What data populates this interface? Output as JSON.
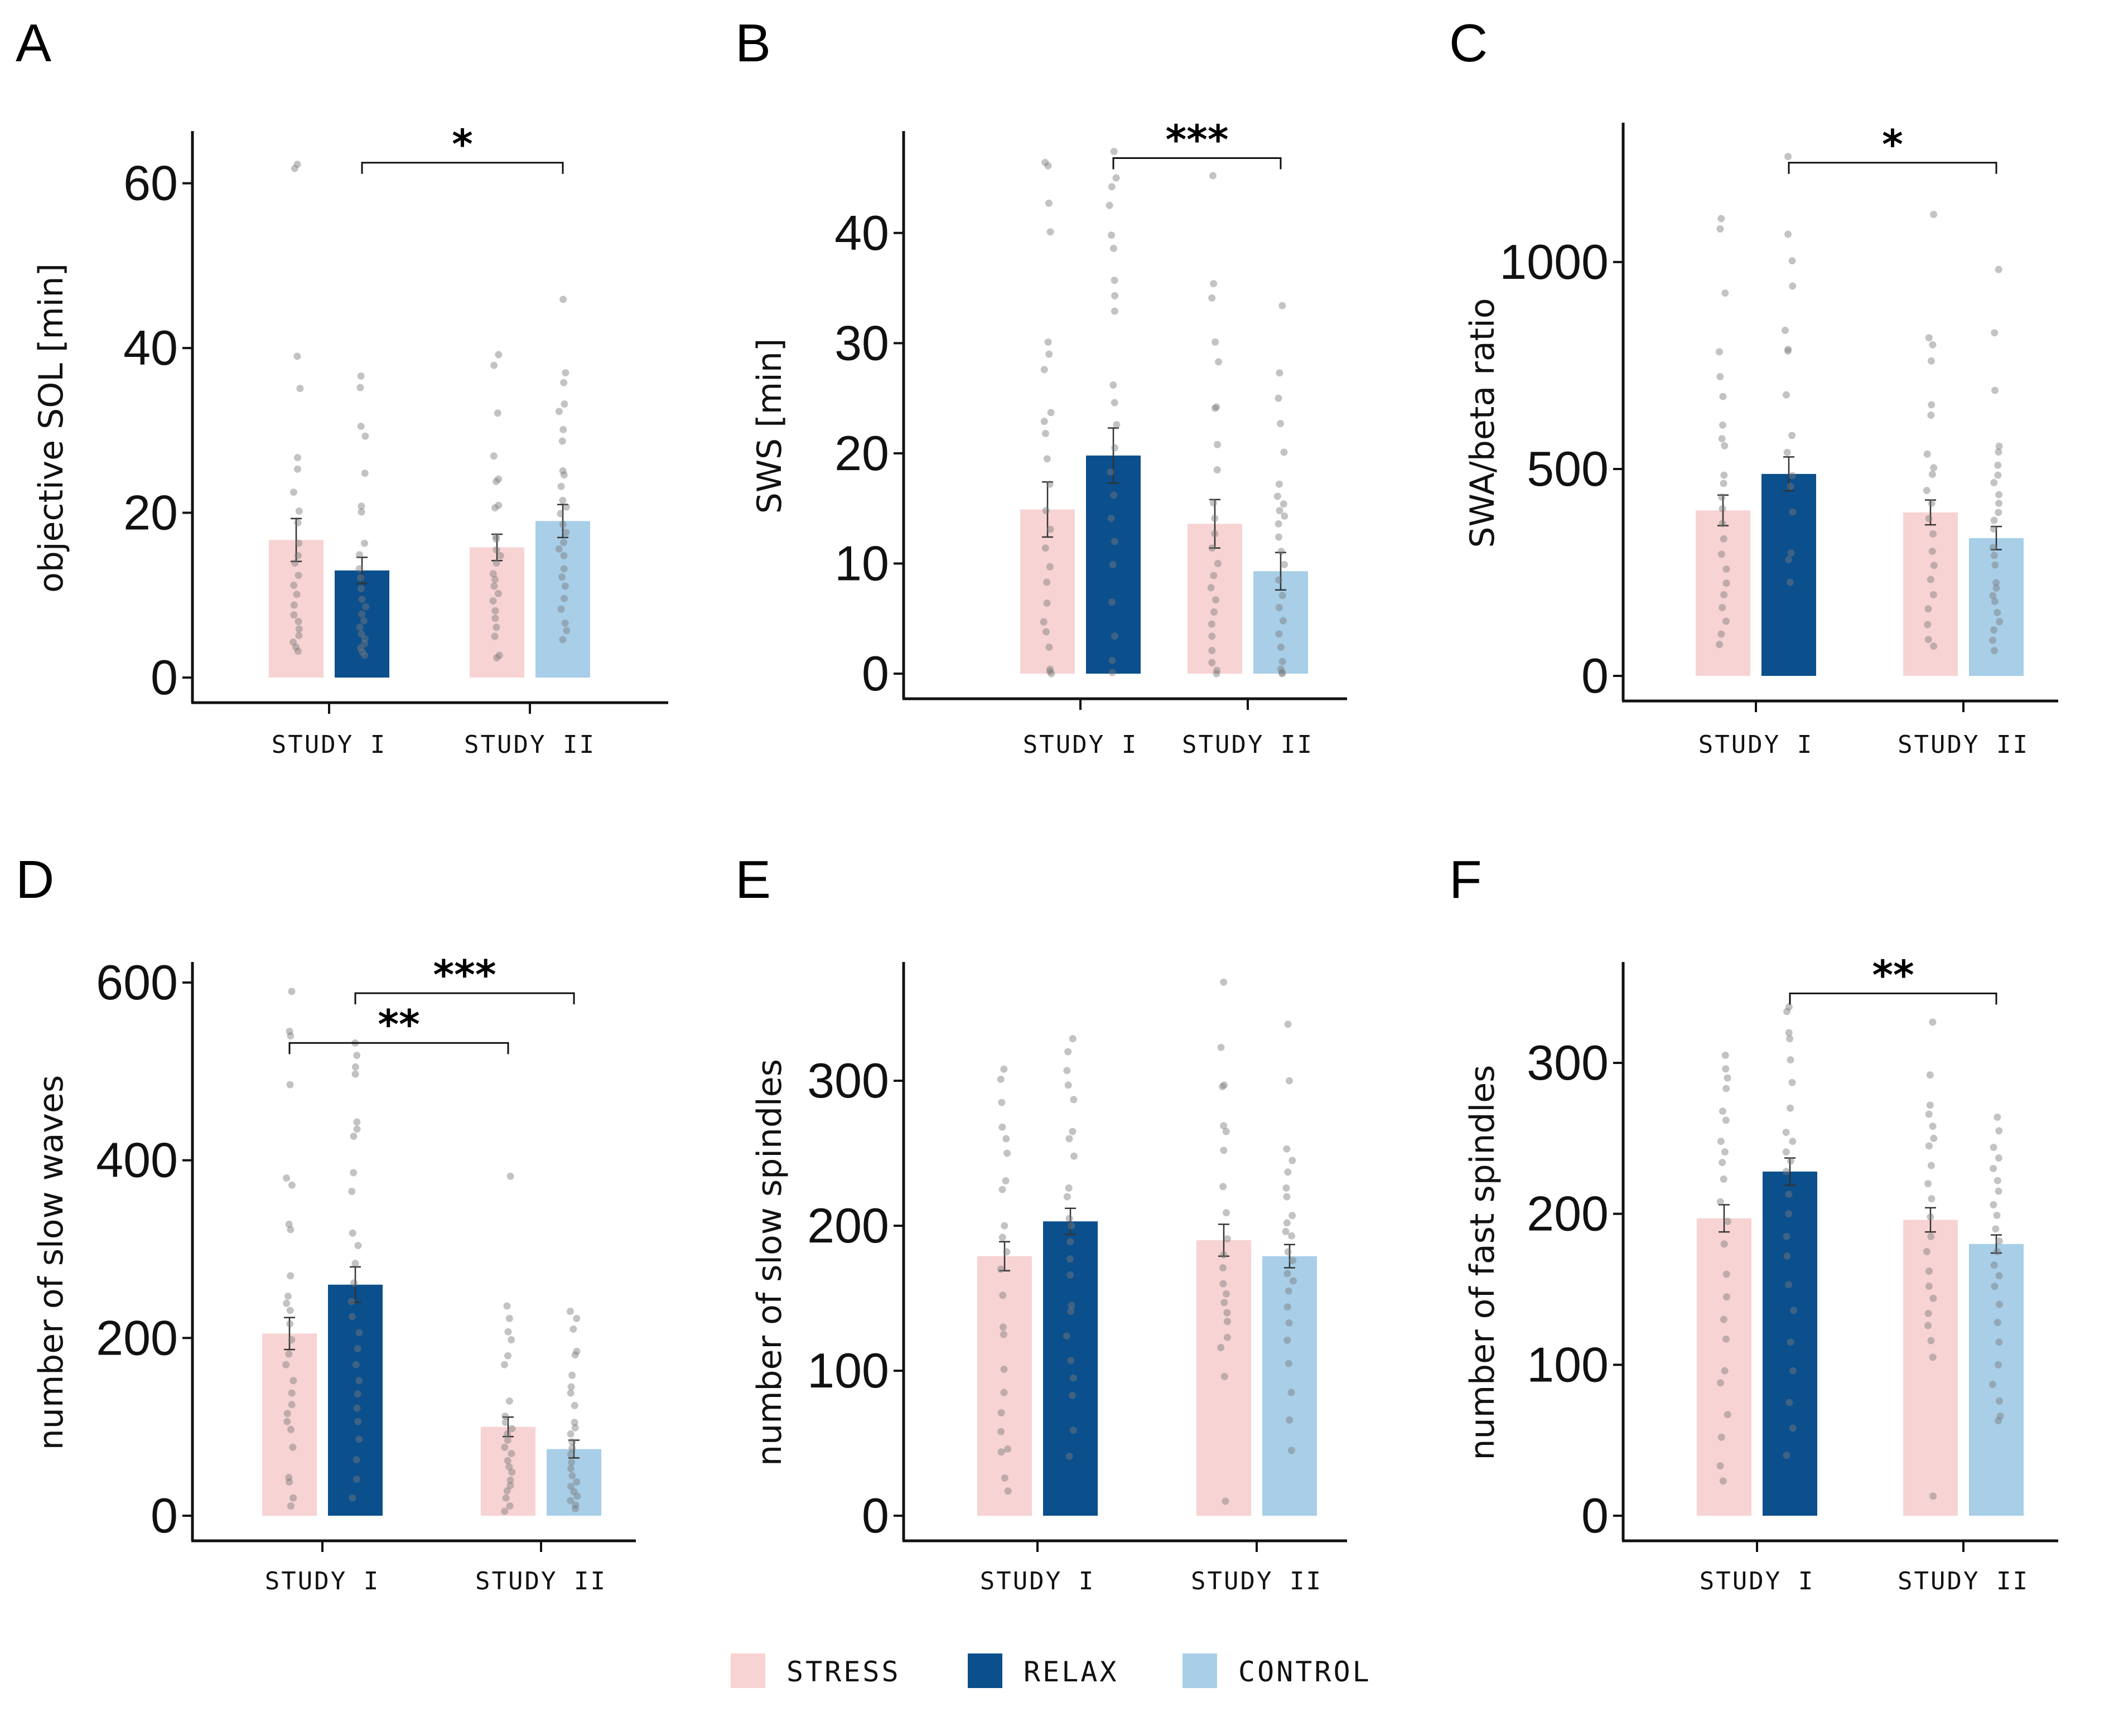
{
  "colors": {
    "stress": "#f7d3d3",
    "relax": "#0b4f8c",
    "control": "#a8cee8",
    "points": "#7a7a7a",
    "axis": "#111111"
  },
  "legend": [
    {
      "key": "stress",
      "label": "STRESS"
    },
    {
      "key": "relax",
      "label": "RELAX"
    },
    {
      "key": "control",
      "label": "CONTROL"
    }
  ],
  "chart_data": [
    {
      "panel": "A",
      "type": "bar",
      "ylabel": "objective SOL [min]",
      "ylim": [
        0,
        66
      ],
      "yticks": [
        0,
        20,
        40,
        60
      ],
      "categories": [
        "STUDY I",
        "STUDY II"
      ],
      "bars": [
        {
          "category": "STUDY I",
          "group": "stress",
          "value": 16.7,
          "se": 2.6,
          "points": [
            62.3,
            61.8,
            39,
            35.1,
            26.7,
            25.3,
            22.5,
            20.2,
            18.8,
            16.3,
            14.8,
            13.9,
            12.4,
            11.2,
            10.1,
            8.8,
            7.6,
            6.8,
            5.9,
            5.1,
            4.3,
            3.7,
            3.2
          ]
        },
        {
          "category": "STUDY I",
          "group": "relax",
          "value": 13.0,
          "se": 1.6,
          "points": [
            36.6,
            35.2,
            30.5,
            29.3,
            24.8,
            20.8,
            20.1,
            16.3,
            14.9,
            13.2,
            12.1,
            10.8,
            9.5,
            8.6,
            7.7,
            6.9,
            6.1,
            5.3,
            4.7,
            4.1,
            3.6,
            3.1,
            2.7
          ]
        },
        {
          "category": "STUDY II",
          "group": "stress",
          "value": 15.8,
          "se": 1.6,
          "points": [
            39.2,
            37.9,
            32.1,
            26.9,
            24.1,
            23.8,
            20.9,
            20.6,
            17.1,
            16.8,
            15.5,
            14.8,
            13.9,
            12.6,
            11.9,
            11.1,
            10.2,
            9.3,
            8.1,
            7.2,
            6.1,
            5.0,
            2.7,
            2.4
          ]
        },
        {
          "category": "STUDY II",
          "group": "control",
          "value": 19.0,
          "se": 2.0,
          "points": [
            45.9,
            37,
            35.8,
            33.2,
            32.3,
            30.1,
            28.7,
            25.1,
            24.6,
            23.2,
            21.5,
            20.7,
            19.9,
            18.6,
            17.6,
            16.4,
            15.6,
            14.8,
            13.2,
            12.2,
            11.1,
            9.6,
            8.3,
            6.6,
            5.7,
            4.6
          ]
        }
      ],
      "significance": [
        {
          "from": 1,
          "to": 3,
          "y": 62.5,
          "label": "*"
        }
      ]
    },
    {
      "panel": "B",
      "type": "bar",
      "ylabel": "SWS [min]",
      "ylim": [
        0,
        49
      ],
      "yticks": [
        0,
        10,
        20,
        30,
        40
      ],
      "categories": [
        "STUDY I",
        "STUDY II"
      ],
      "bars": [
        {
          "category": "STUDY I",
          "group": "stress",
          "value": 14.9,
          "se": 2.5,
          "points": [
            46.4,
            46.1,
            42.7,
            40.1,
            30.1,
            29.0,
            27.6,
            23.7,
            22.9,
            21.8,
            19.5,
            17.2,
            14.8,
            13.1,
            11.4,
            9.7,
            8.3,
            6.4,
            4.7,
            3.8,
            2.4,
            0.4,
            0.2,
            0.0
          ]
        },
        {
          "category": "STUDY I",
          "group": "relax",
          "value": 19.8,
          "se": 2.5,
          "points": [
            47.4,
            45.0,
            44.2,
            42.5,
            39.8,
            38.6,
            35.7,
            34.3,
            32.9,
            26.2,
            24.6,
            22.6,
            20.5,
            18.3,
            16.2,
            14.1,
            12.0,
            9.9,
            6.5,
            3.4,
            1.2,
            0.1
          ]
        },
        {
          "category": "STUDY II",
          "group": "stress",
          "value": 13.6,
          "se": 2.2,
          "points": [
            45.2,
            35.4,
            34.1,
            30.1,
            28.3,
            24.2,
            24.1,
            20.8,
            18.5,
            15.5,
            14.1,
            12.7,
            11.4,
            10.0,
            8.9,
            7.8,
            6.7,
            5.6,
            4.5,
            3.4,
            2.1,
            1.0,
            0.3,
            0.0
          ]
        },
        {
          "category": "STUDY II",
          "group": "control",
          "value": 9.3,
          "se": 1.7,
          "points": [
            33.4,
            27.3,
            25.0,
            22.7,
            20.1,
            17.2,
            16.1,
            15.4,
            14.8,
            14.3,
            13.6,
            12.4,
            11.1,
            9.9,
            8.5,
            7.1,
            6.0,
            4.8,
            3.6,
            2.4,
            1.1,
            0.4,
            0.1,
            0.0
          ]
        }
      ],
      "significance": [
        {
          "from": 1,
          "to": 3,
          "y": 46.8,
          "label": "***"
        }
      ]
    },
    {
      "panel": "C",
      "type": "bar",
      "ylabel": "SWA/beta ratio",
      "ylim": [
        0,
        1330
      ],
      "yticks": [
        0,
        500,
        1000
      ],
      "categories": [
        "STUDY I",
        "STUDY II"
      ],
      "bars": [
        {
          "category": "STUDY I",
          "group": "stress",
          "value": 400,
          "se": 37,
          "points": [
            1105,
            1080,
            925,
            783,
            723,
            675,
            606,
            573,
            556,
            485,
            465,
            432,
            404,
            368,
            331,
            294,
            258,
            224,
            196,
            165,
            132,
            101,
            76
          ]
        },
        {
          "category": "STUDY I",
          "group": "relax",
          "value": 488,
          "se": 41,
          "points": [
            1255,
            1067,
            1003,
            942,
            835,
            789,
            785,
            679,
            581,
            540,
            484,
            458,
            396,
            297,
            281,
            226
          ]
        },
        {
          "category": "STUDY II",
          "group": "stress",
          "value": 395,
          "se": 30,
          "points": [
            1115,
            817,
            800,
            761,
            655,
            630,
            536,
            503,
            487,
            448,
            417,
            380,
            343,
            301,
            267,
            233,
            196,
            162,
            124,
            88,
            72
          ]
        },
        {
          "category": "STUDY II",
          "group": "control",
          "value": 333,
          "se": 28,
          "points": [
            982,
            829,
            690,
            555,
            541,
            509,
            485,
            467,
            438,
            417,
            395,
            376,
            355,
            310,
            291,
            268,
            225,
            212,
            194,
            180,
            153,
            131,
            111,
            86,
            61
          ]
        }
      ],
      "significance": [
        {
          "from": 1,
          "to": 3,
          "y": 1240,
          "label": "*"
        }
      ]
    },
    {
      "panel": "D",
      "type": "bar",
      "ylabel": "number of slow waves",
      "ylim": [
        0,
        620
      ],
      "yticks": [
        0,
        200,
        400,
        600
      ],
      "categories": [
        "STUDY I",
        "STUDY II"
      ],
      "bars": [
        {
          "category": "STUDY I",
          "group": "stress",
          "value": 205,
          "se": 18,
          "points": [
            590,
            545,
            540,
            485,
            380,
            372,
            328,
            322,
            270,
            247,
            239,
            231,
            216,
            198,
            182,
            170,
            152,
            138,
            125,
            115,
            106,
            97,
            77,
            43,
            38,
            20,
            11
          ]
        },
        {
          "category": "STUDY I",
          "group": "relax",
          "value": 260,
          "se": 20,
          "points": [
            532,
            518,
            505,
            497,
            443,
            435,
            427,
            386,
            365,
            318,
            304,
            284,
            262,
            241,
            224,
            206,
            188,
            170,
            152,
            137,
            121,
            106,
            86,
            63,
            41,
            20
          ]
        },
        {
          "category": "STUDY II",
          "group": "stress",
          "value": 100,
          "se": 11,
          "points": [
            382,
            236,
            222,
            207,
            198,
            180,
            170,
            129,
            112,
            105,
            98,
            92,
            85,
            77,
            70,
            62,
            55,
            49,
            40,
            34,
            28,
            20,
            11,
            5
          ]
        },
        {
          "category": "STUDY II",
          "group": "control",
          "value": 75,
          "se": 10,
          "points": [
            230,
            222,
            210,
            185,
            181,
            158,
            145,
            138,
            124,
            105,
            99,
            92,
            83,
            76,
            69,
            60,
            53,
            45,
            38,
            33,
            27,
            22,
            17,
            12,
            8
          ]
        }
      ],
      "significance": [
        {
          "from": 1,
          "to": 3,
          "y": 588,
          "label": "***"
        },
        {
          "from": 0,
          "to": 2,
          "y": 532,
          "label": "**"
        }
      ]
    },
    {
      "panel": "E",
      "type": "bar",
      "ylabel": "number of slow spindles",
      "ylim": [
        0,
        380
      ],
      "yticks": [
        0,
        100,
        200,
        300
      ],
      "categories": [
        "STUDY I",
        "STUDY II"
      ],
      "bars": [
        {
          "category": "STUDY I",
          "group": "stress",
          "value": 179,
          "se": 10,
          "points": [
            308,
            301,
            285,
            268,
            260,
            250,
            231,
            225,
            200,
            192,
            182,
            170,
            152,
            130,
            125,
            101,
            85,
            71,
            58,
            46,
            44,
            26,
            17
          ]
        },
        {
          "category": "STUDY I",
          "group": "relax",
          "value": 203,
          "se": 9,
          "points": [
            329,
            320,
            307,
            297,
            287,
            265,
            260,
            248,
            226,
            220,
            205,
            200,
            189,
            177,
            166,
            145,
            141,
            124,
            107,
            95,
            83,
            59,
            41
          ]
        },
        {
          "category": "STUDY II",
          "group": "stress",
          "value": 190,
          "se": 11,
          "points": [
            368,
            323,
            297,
            296,
            269,
            265,
            252,
            227,
            209,
            191,
            180,
            171,
            160,
            153,
            147,
            140,
            134,
            123,
            116,
            96,
            10
          ]
        },
        {
          "category": "STUDY II",
          "group": "control",
          "value": 179,
          "se": 8,
          "points": [
            339,
            300,
            253,
            245,
            237,
            226,
            220,
            207,
            202,
            196,
            193,
            182,
            176,
            167,
            162,
            155,
            144,
            133,
            121,
            105,
            85,
            66,
            45
          ]
        }
      ],
      "significance": []
    },
    {
      "panel": "F",
      "type": "bar",
      "ylabel": "number of fast spindles",
      "ylim": [
        0,
        365
      ],
      "yticks": [
        0,
        100,
        200,
        300
      ],
      "categories": [
        "STUDY I",
        "STUDY II"
      ],
      "bars": [
        {
          "category": "STUDY I",
          "group": "stress",
          "value": 197,
          "se": 9,
          "points": [
            305,
            296,
            290,
            283,
            268,
            262,
            248,
            241,
            234,
            223,
            208,
            195,
            180,
            160,
            145,
            130,
            117,
            96,
            88,
            67,
            52,
            33,
            23
          ]
        },
        {
          "category": "STUDY I",
          "group": "relax",
          "value": 228,
          "se": 9,
          "points": [
            337,
            334,
            320,
            316,
            302,
            287,
            270,
            254,
            248,
            241,
            235,
            228,
            213,
            200,
            185,
            172,
            153,
            136,
            115,
            96,
            75,
            58,
            40
          ]
        },
        {
          "category": "STUDY II",
          "group": "stress",
          "value": 196,
          "se": 8,
          "points": [
            327,
            292,
            272,
            266,
            258,
            250,
            245,
            232,
            220,
            210,
            198,
            185,
            175,
            162,
            152,
            144,
            134,
            126,
            116,
            105,
            13
          ]
        },
        {
          "category": "STUDY II",
          "group": "control",
          "value": 180,
          "se": 6,
          "points": [
            264,
            255,
            244,
            237,
            230,
            222,
            215,
            206,
            199,
            190,
            182,
            175,
            166,
            159,
            152,
            140,
            128,
            115,
            100,
            87,
            76,
            66,
            63
          ]
        }
      ],
      "significance": [
        {
          "from": 1,
          "to": 3,
          "y": 346,
          "label": "**"
        }
      ]
    }
  ]
}
